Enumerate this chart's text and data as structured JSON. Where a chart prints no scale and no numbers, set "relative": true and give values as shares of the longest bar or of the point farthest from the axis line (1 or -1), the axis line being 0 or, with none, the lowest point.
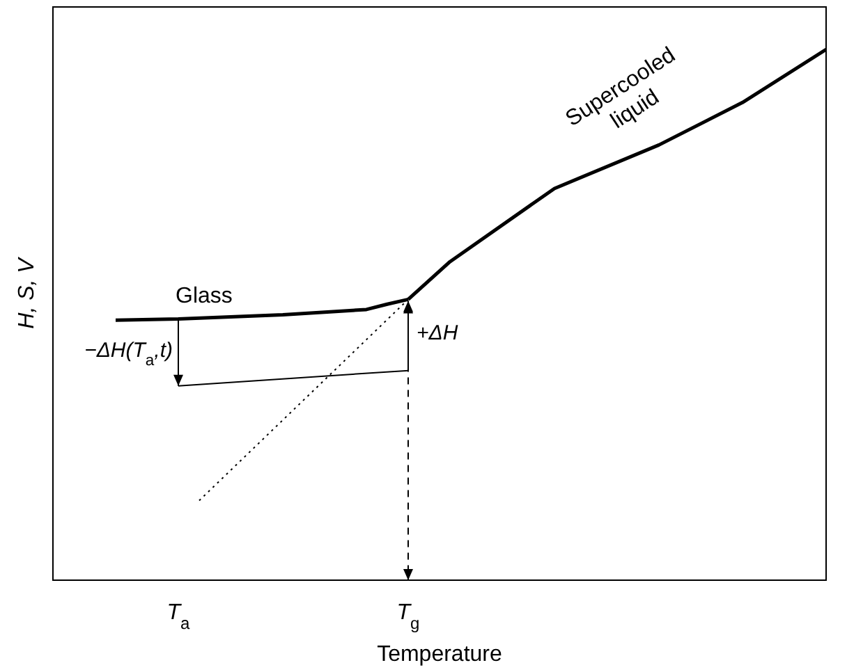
{
  "chart_data": {
    "type": "line",
    "relative": true,
    "xlabel": "Temperature",
    "ylabel": "H, S, V",
    "marker": "none",
    "annotations": [
      "−ΔH(T$_{a}$,t)",
      "+ΔH"
    ],
    "categories": [
      null,
      null,
      null,
      null,
      null,
      null,
      "T$_{a}$",
      null,
      null,
      null,
      null,
      null,
      null,
      null,
      null,
      null,
      null,
      "T$_{g}$",
      null,
      null,
      null,
      null,
      null,
      null,
      null,
      null,
      null,
      null,
      null,
      null,
      null,
      null,
      null,
      null,
      null,
      null,
      null,
      null
    ],
    "series": [
      {
        "name": "Glass",
        "color": "#000000",
        "line_style": "solid",
        "values": [
          null,
          null,
          null,
          0.49,
          null,
          null,
          0.492,
          null,
          null,
          null,
          null,
          0.5,
          null,
          null,
          null,
          0.51,
          0.52,
          0.529,
          null,
          null,
          null,
          null,
          null,
          null,
          null,
          null,
          null,
          null,
          null,
          null,
          null,
          null,
          null,
          null,
          null,
          null,
          null,
          null
        ]
      },
      {
        "name": "Supercooled liquid",
        "color": "#000000",
        "line_style": "solid",
        "values": [
          null,
          null,
          null,
          null,
          null,
          null,
          null,
          null,
          null,
          null,
          null,
          null,
          null,
          null,
          null,
          null,
          null,
          0.529,
          null,
          0.6,
          null,
          null,
          null,
          null,
          0.738,
          null,
          null,
          null,
          null,
          0.82,
          null,
          null,
          null,
          0.9,
          null,
          null,
          null,
          1
        ]
      },
      {
        "color": "#000000",
        "line_style": "dotted",
        "values": [
          null,
          null,
          null,
          null,
          null,
          null,
          null,
          0.15,
          null,
          null,
          null,
          null,
          null,
          null,
          null,
          null,
          null,
          0.529,
          null,
          null,
          null,
          null,
          null,
          null,
          null,
          null,
          null,
          null,
          null,
          null,
          null,
          null,
          null,
          null,
          null,
          null,
          null,
          null
        ]
      },
      {
        "color": "#000000",
        "line_style": "solid",
        "values": [
          null,
          null,
          null,
          null,
          null,
          null,
          0.366,
          null,
          null,
          null,
          null,
          null,
          null,
          null,
          null,
          null,
          null,
          0.395,
          null,
          null,
          null,
          null,
          null,
          null,
          null,
          null,
          null,
          null,
          null,
          null,
          null,
          null,
          null,
          null,
          null,
          null,
          null,
          null
        ]
      }
    ]
  }
}
